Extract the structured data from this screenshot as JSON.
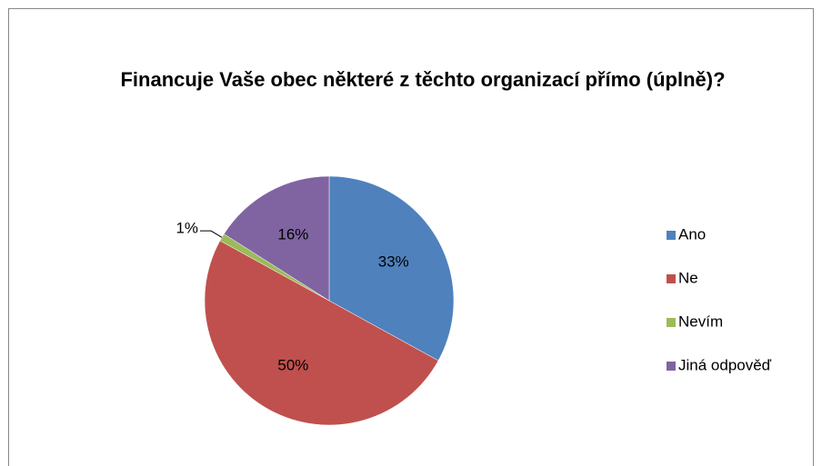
{
  "chart_data": {
    "type": "pie",
    "title": "Financuje Vaše obec některé z těchto organizací přímo (úplně)?",
    "categories": [
      "Ano",
      "Ne",
      "Nevím",
      "Jiná odpověď"
    ],
    "values": [
      33,
      50,
      1,
      16
    ],
    "value_labels": [
      "33%",
      "50%",
      "1%",
      "16%"
    ],
    "colors": [
      "#4f81bd",
      "#c0504d",
      "#9bbb59",
      "#8064a2"
    ],
    "legend": "right"
  }
}
